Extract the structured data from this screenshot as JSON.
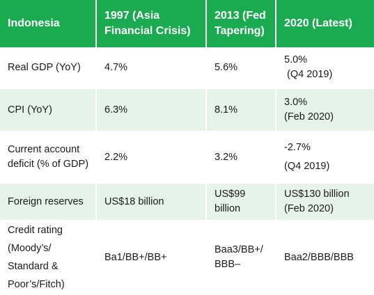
{
  "header": {
    "country": "Indonesia",
    "col_1997": "1997 (Asia Financial Crisis)",
    "col_2013": "2013 (Fed Tapering)",
    "col_2020": "2020 (Latest)"
  },
  "rows": [
    {
      "label": "Real GDP (YoY)",
      "v1997": "4.7%",
      "v2013": "5.6%",
      "v2020": "5.0%",
      "v2020_note": "(Q4 2019)"
    },
    {
      "label": "CPI (YoY)",
      "v1997": "6.3%",
      "v2013": "8.1%",
      "v2020": "3.0%",
      "v2020_note": "(Feb 2020)"
    },
    {
      "label": "Current account deficit (% of GDP)",
      "v1997": "2.2%",
      "v2013": "3.2%",
      "v2020": "-2.7%",
      "v2020_note": "(Q4 2019)"
    },
    {
      "label": "Foreign reserves",
      "v1997": "US$18 billion",
      "v2013": "US$99 billion",
      "v2020": "US$130 billion (Feb 2020)",
      "v2020_note": ""
    },
    {
      "label_word1": "Credit",
      "label_word2": "rating",
      "label_rest": "(Moody’s/ Standard & Poor’s/Fitch)",
      "v1997": "Ba1/BB+/BB+",
      "v2013": "Baa3/BB+/ BBB–",
      "v2020": "Baa2/BBB/BBB"
    }
  ]
}
